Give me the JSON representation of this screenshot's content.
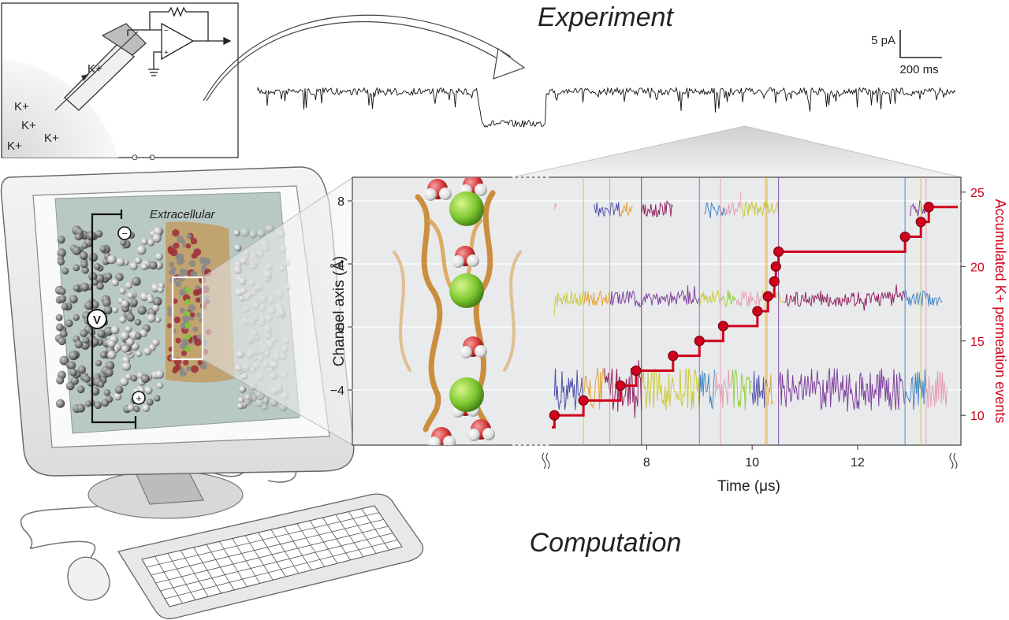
{
  "titles": {
    "experiment": "Experiment",
    "computation": "Computation"
  },
  "patch_clamp_inset": {
    "ions": [
      "K+",
      "K+",
      "K+",
      "K+",
      "K+"
    ]
  },
  "scale_bar": {
    "current": "5 pA",
    "time": "200 ms"
  },
  "md_simulation": {
    "region_label": "Extracellular",
    "voltage_symbol": "V",
    "minus_symbol": "−",
    "plus_symbol": "+"
  },
  "chart_data": {
    "type": "line",
    "xlabel": "Time (μs)",
    "ylabel": "Channel axis (Å)",
    "y2label": "Accumulated K+ permeation events",
    "x_ticks": [
      "8",
      "10",
      "12"
    ],
    "y_ticks": [
      "8",
      "4",
      "0",
      "−4"
    ],
    "y2_ticks": [
      "25",
      "20",
      "15",
      "10"
    ],
    "xlim": [
      6.2,
      13.9
    ],
    "ylim": [
      -7.5,
      9.5
    ],
    "y2lim": [
      8,
      26
    ],
    "series": [
      {
        "values": [
          [
            6.25,
            10
          ],
          [
            6.8,
            11
          ],
          [
            7.5,
            12
          ],
          [
            7.8,
            13
          ],
          [
            8.5,
            14
          ],
          [
            9.0,
            15
          ],
          [
            9.45,
            16
          ],
          [
            10.1,
            17
          ],
          [
            10.3,
            18
          ],
          [
            10.42,
            19
          ],
          [
            10.45,
            20
          ],
          [
            10.5,
            21
          ],
          [
            12.9,
            22
          ],
          [
            13.2,
            23
          ],
          [
            13.35,
            24
          ]
        ]
      }
    ],
    "ion_track_colors": [
      "#4a49a8",
      "#8b1a5c",
      "#c7c832",
      "#e6a030",
      "#3d7fc1",
      "#e59ab0",
      "#8fcf3a",
      "#7a3a9a"
    ],
    "colors": {
      "steps": "#d0021b",
      "k_ion": "#7ec832",
      "oxygen": "#d63a3a",
      "protein_backbone": "#c8842c"
    }
  }
}
